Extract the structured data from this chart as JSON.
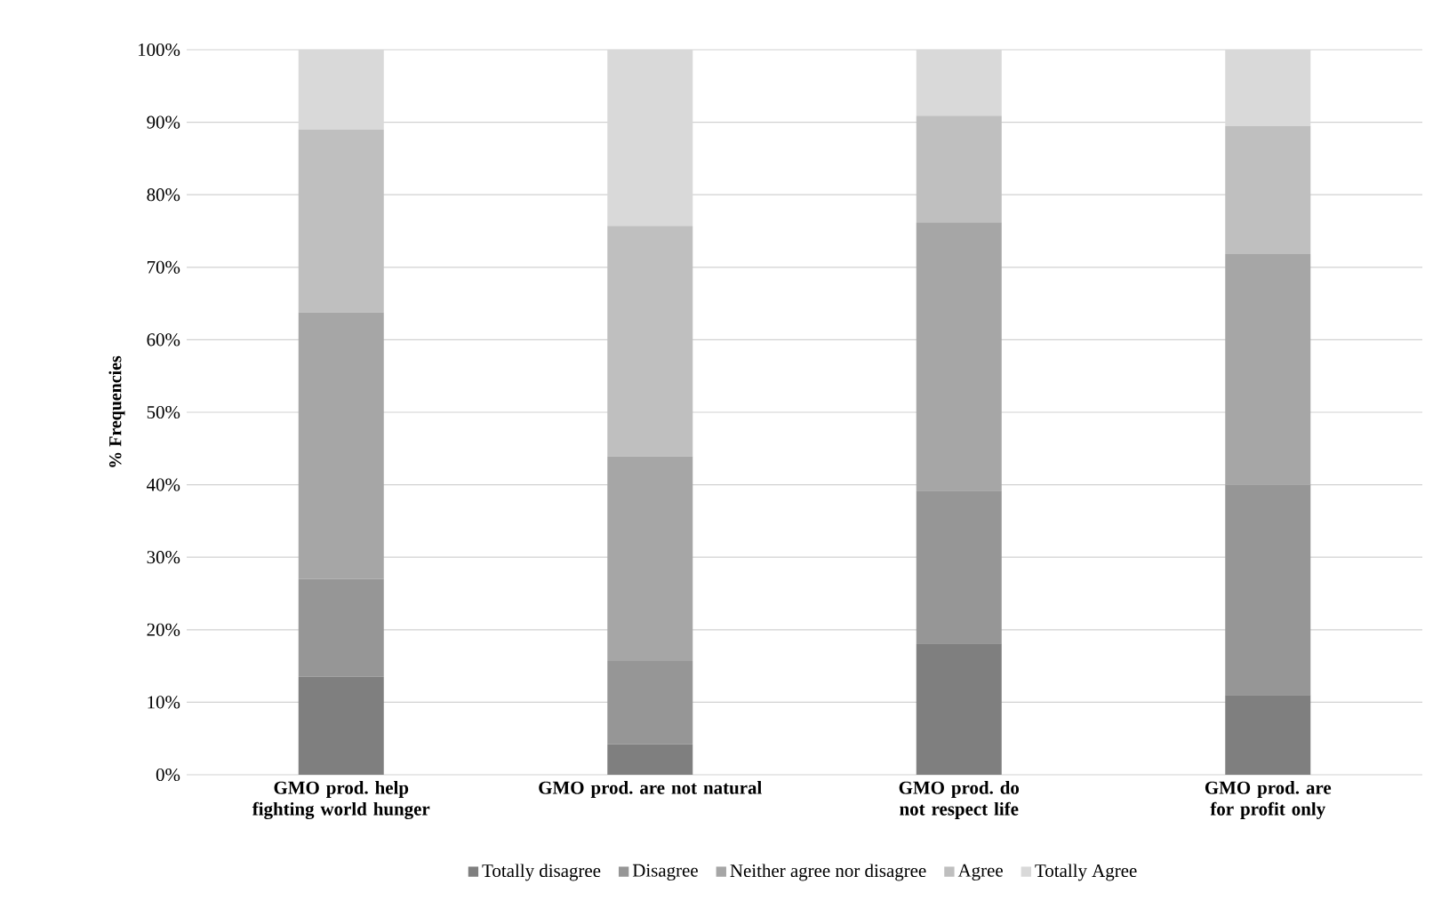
{
  "chart_data": {
    "type": "bar",
    "stacked": true,
    "ylabel": "% Frequencies",
    "categories": [
      "GMO prod. help fighting world hunger",
      "GMO prod. are not natural",
      "GMO prod. do not respect life",
      "GMO prod. are for profit only"
    ],
    "series": [
      {
        "name": "Totally disagree",
        "color": "#7f7f7f",
        "values": [
          13.5,
          4.2,
          18.1,
          11.0
        ]
      },
      {
        "name": "Disagree",
        "color": "#969696",
        "values": [
          13.5,
          11.5,
          21.1,
          29.0
        ]
      },
      {
        "name": "Neither agree nor disagree",
        "color": "#a6a6a6",
        "values": [
          36.8,
          28.2,
          37.0,
          31.8
        ]
      },
      {
        "name": "Agree",
        "color": "#bfbfbf",
        "values": [
          25.2,
          31.8,
          14.7,
          17.7
        ]
      },
      {
        "name": "Totally Agree",
        "color": "#d9d9d9",
        "values": [
          11.0,
          24.3,
          9.1,
          10.5
        ]
      }
    ],
    "ylim": [
      0,
      100
    ],
    "yticks": [
      {
        "value": 0,
        "label": "0%"
      },
      {
        "value": 10,
        "label": "10%"
      },
      {
        "value": 20,
        "label": "20%"
      },
      {
        "value": 30,
        "label": "30%"
      },
      {
        "value": 40,
        "label": "40%"
      },
      {
        "value": 50,
        "label": "50%"
      },
      {
        "value": 60,
        "label": "60%"
      },
      {
        "value": 70,
        "label": "70%"
      },
      {
        "value": 80,
        "label": "80%"
      },
      {
        "value": 90,
        "label": "90%"
      },
      {
        "value": 100,
        "label": "100%"
      }
    ],
    "grid": "y",
    "legend": "bottom"
  }
}
